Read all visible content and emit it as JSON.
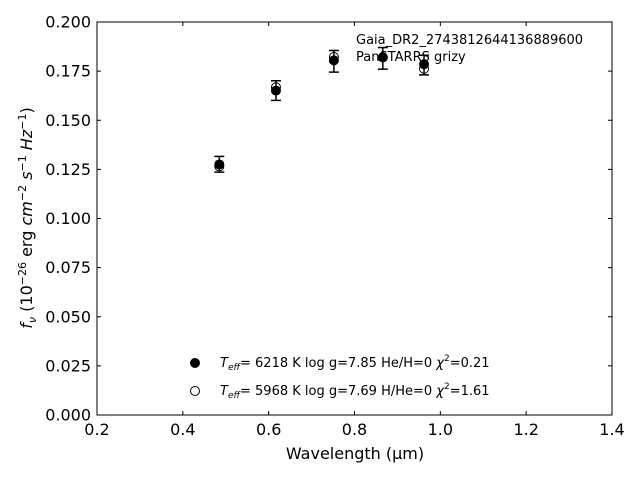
{
  "chart_data": {
    "type": "scatter",
    "xlabel": "Wavelength (μm)",
    "ylabel_parts": {
      "f": "f",
      "nu": "ν",
      "lp": " (10",
      "exp26": "−26",
      "erg": " erg ",
      "cm": "cm",
      "expm2": "−2",
      "s": " s",
      "expm1a": "−1",
      "hz": " Hz",
      "expm1b": "−1",
      "rp": ")"
    },
    "xlim": [
      0.2,
      1.4
    ],
    "ylim": [
      0.0,
      0.2
    ],
    "xticks": [
      0.2,
      0.4,
      0.6,
      0.8,
      1.0,
      1.2,
      1.4
    ],
    "xtick_labels": [
      "0.2",
      "0.4",
      "0.6",
      "0.8",
      "1.0",
      "1.2",
      "1.4"
    ],
    "yticks": [
      0.0,
      0.025,
      0.05,
      0.075,
      0.1,
      0.125,
      0.15,
      0.175,
      0.2
    ],
    "ytick_labels": [
      "0.000",
      "0.025",
      "0.050",
      "0.075",
      "0.100",
      "0.125",
      "0.150",
      "0.175",
      "0.200"
    ],
    "grid": false,
    "annotation_lines": [
      "Gaia_DR2_2743812644136889600",
      "PanSTARRS grizy"
    ],
    "observed": {
      "x": [
        0.485,
        0.617,
        0.752,
        0.866,
        0.962
      ],
      "y": [
        0.1276,
        0.1651,
        0.18,
        0.1815,
        0.1781
      ],
      "err": [
        0.004,
        0.005,
        0.0055,
        0.0055,
        0.005
      ]
    },
    "series": [
      {
        "marker": "filled",
        "x": [
          0.485,
          0.617,
          0.752,
          0.866,
          0.962
        ],
        "y": [
          0.1275,
          0.1651,
          0.1805,
          0.182,
          0.1785
        ],
        "legend_parts": {
          "t": "T",
          "sub": "eff",
          "mid": "=  6218 K  log g=7.85  He/H=0  ",
          "chi": "χ",
          "sup": "2",
          "end": "=0.21"
        }
      },
      {
        "marker": "open",
        "x": [
          0.485,
          0.617,
          0.752,
          0.866,
          0.962
        ],
        "y": [
          0.1265,
          0.1668,
          0.1822,
          0.182,
          0.1762
        ],
        "legend_parts": {
          "t": "T",
          "sub": "eff",
          "mid": "=  5968 K  log g=7.69  H/He=0  ",
          "chi": "χ",
          "sup": "2",
          "end": "=1.61"
        }
      }
    ]
  }
}
